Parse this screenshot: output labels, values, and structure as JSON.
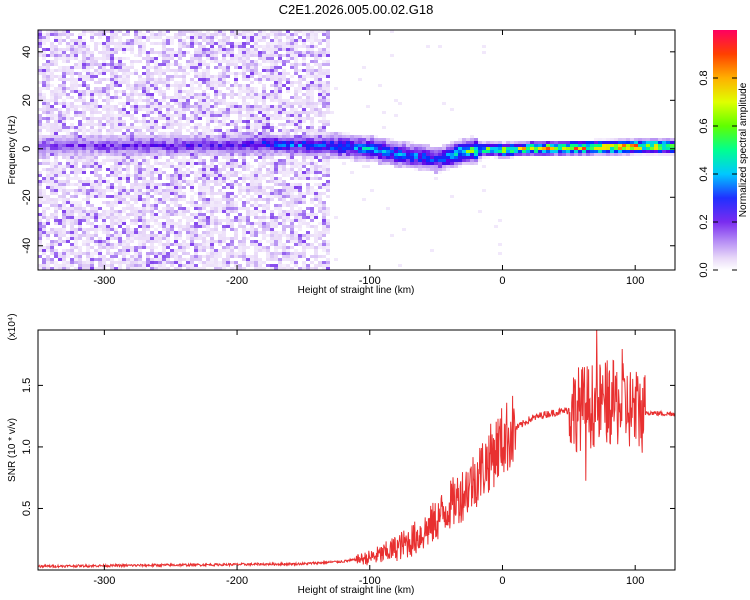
{
  "figure": {
    "title": "C2E1.2026.005.00.02.G18"
  },
  "chart_data": [
    {
      "type": "heatmap",
      "title": "C2E1.2026.005.00.02.G18",
      "xlabel": "Height of straight line (km)",
      "ylabel": "Frequency (Hz)",
      "xlim": [
        -350,
        130
      ],
      "ylim": [
        -50,
        49
      ],
      "xticks": [
        -300,
        -200,
        -100,
        0,
        100
      ],
      "yticks": [
        -40,
        -20,
        0,
        20,
        40
      ],
      "grid": false,
      "colorbar": {
        "label": "Normalized spectral amplitude",
        "range": [
          0,
          1
        ],
        "ticks": [
          0.0,
          0.2,
          0.4,
          0.6,
          0.8
        ],
        "tick_labels": [
          "0.0",
          "0.2",
          "0.4",
          "0.6",
          "0.8"
        ],
        "colormap": [
          "#ffffff",
          "#e8d8f8",
          "#9b6bf0",
          "#5a00e8",
          "#0030ff",
          "#00c8ff",
          "#00ff80",
          "#a0ff00",
          "#ffe000",
          "#ff5000",
          "#ff0040"
        ]
      },
      "noise_region": {
        "x_range": [
          -350,
          -130
        ],
        "freq_range": [
          -50,
          49
        ],
        "amplitude": "low"
      },
      "ridge": [
        {
          "x": -350,
          "freq": 1.5,
          "amp": 0.25
        },
        {
          "x": -300,
          "freq": 1.8,
          "amp": 0.28
        },
        {
          "x": -250,
          "freq": 1.8,
          "amp": 0.3
        },
        {
          "x": -200,
          "freq": 2.0,
          "amp": 0.32
        },
        {
          "x": -180,
          "freq": 2.5,
          "amp": 0.4
        },
        {
          "x": -150,
          "freq": 2.0,
          "amp": 0.45
        },
        {
          "x": -120,
          "freq": 1.5,
          "amp": 0.45
        },
        {
          "x": -100,
          "freq": 0.5,
          "amp": 0.5
        },
        {
          "x": -80,
          "freq": -1.5,
          "amp": 0.5
        },
        {
          "x": -60,
          "freq": -3.0,
          "amp": 0.45
        },
        {
          "x": -50,
          "freq": -4.0,
          "amp": 0.4
        },
        {
          "x": -40,
          "freq": -2.0,
          "amp": 0.55
        },
        {
          "x": -30,
          "freq": -0.5,
          "amp": 0.65
        },
        {
          "x": -10,
          "freq": 0.5,
          "amp": 0.7
        },
        {
          "x": 0,
          "freq": 0.0,
          "amp": 0.75
        },
        {
          "x": 20,
          "freq": 0.8,
          "amp": 0.8
        },
        {
          "x": 50,
          "freq": 1.0,
          "amp": 0.85
        },
        {
          "x": 80,
          "freq": 1.2,
          "amp": 0.9
        },
        {
          "x": 100,
          "freq": 1.5,
          "amp": 0.9
        },
        {
          "x": 130,
          "freq": 1.5,
          "amp": 0.85
        }
      ]
    },
    {
      "type": "line",
      "xlabel": "Height of straight line (km)",
      "ylabel": "SNR (10 * v/v)",
      "y_multiplier_label": "(x10⁴)",
      "xlim": [
        -350,
        130
      ],
      "ylim": [
        0,
        1.95
      ],
      "xticks": [
        -300,
        -200,
        -100,
        0,
        100
      ],
      "yticks": [
        0.5,
        1.0,
        1.5
      ],
      "ytick_labels": [
        "0.5",
        "1.0",
        "1.5"
      ],
      "grid": false,
      "series": [
        {
          "color": "#e83030",
          "x": [
            -350,
            -300,
            -250,
            -200,
            -150,
            -120,
            -100,
            -90,
            -80,
            -70,
            -60,
            -50,
            -40,
            -30,
            -20,
            -10,
            0,
            10,
            20,
            30,
            40,
            50,
            60,
            70,
            80,
            90,
            100,
            110,
            120,
            130
          ],
          "y": [
            0.03,
            0.035,
            0.04,
            0.045,
            0.05,
            0.07,
            0.1,
            0.13,
            0.18,
            0.23,
            0.3,
            0.4,
            0.52,
            0.62,
            0.75,
            0.9,
            1.05,
            1.15,
            1.22,
            1.26,
            1.28,
            1.3,
            1.32,
            1.34,
            1.36,
            1.34,
            1.3,
            1.28,
            1.27,
            1.27
          ]
        }
      ]
    }
  ]
}
